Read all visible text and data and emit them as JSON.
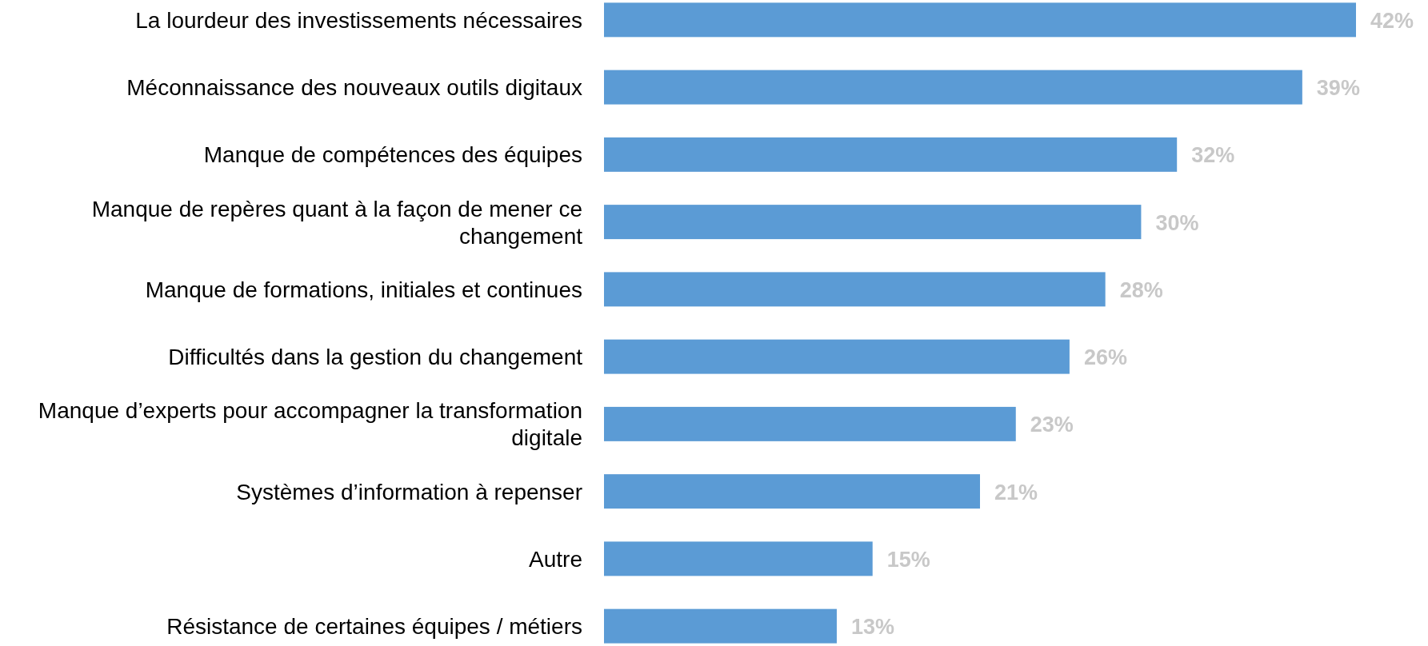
{
  "chart_data": {
    "type": "bar",
    "orientation": "horizontal",
    "categories": [
      "La lourdeur des investissements nécessaires",
      "Méconnaissance des nouveaux outils digitaux",
      "Manque de compétences des équipes",
      "Manque de repères quant à la façon de mener ce changement",
      "Manque de formations, initiales et continues",
      "Difficultés dans la gestion du changement",
      "Manque d’experts pour accompagner la transformation digitale",
      "Systèmes d’information à repenser",
      "Autre",
      "Résistance de certaines équipes / métiers"
    ],
    "values": [
      42,
      39,
      32,
      30,
      28,
      26,
      23,
      21,
      15,
      13
    ],
    "value_labels": [
      "42%",
      "39%",
      "32%",
      "30%",
      "28%",
      "26%",
      "23%",
      "21%",
      "15%",
      "13%"
    ],
    "color": "#5b9bd5"
  }
}
